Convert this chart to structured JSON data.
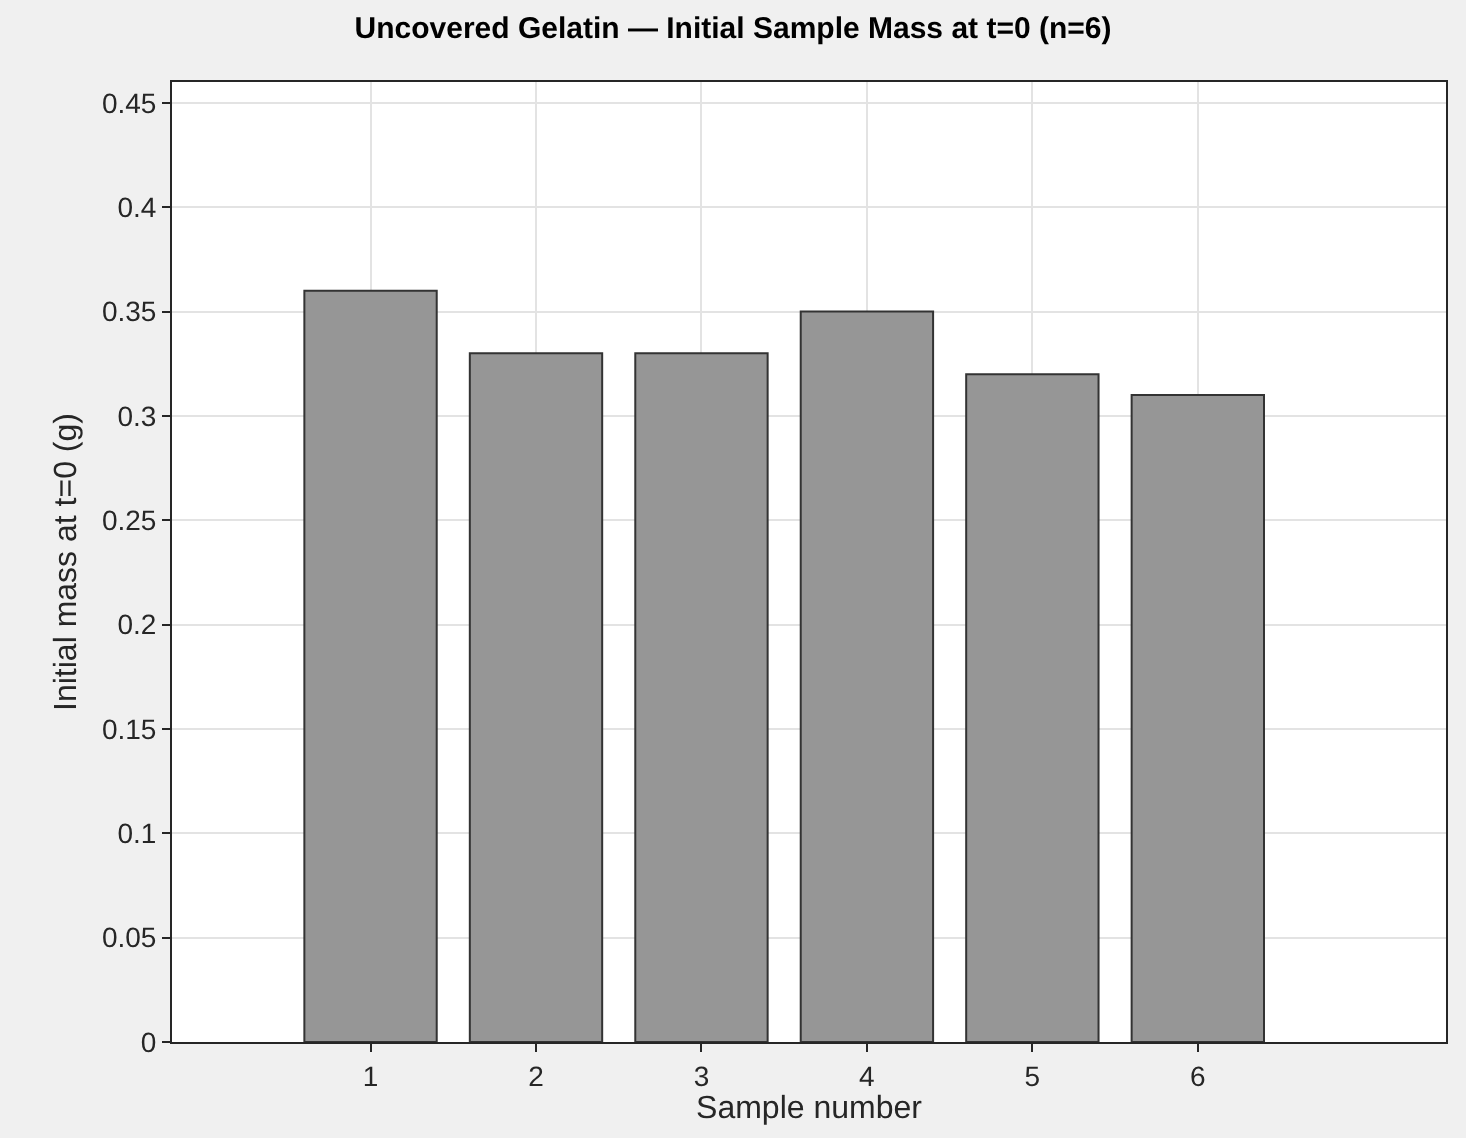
{
  "chart_data": {
    "type": "bar",
    "title": "Uncovered Gelatin — Initial Sample Mass at t=0 (n=6)",
    "xlabel": "Sample number",
    "ylabel": "Initial mass at t=0 (g)",
    "x": [
      1,
      2,
      3,
      4,
      5,
      6
    ],
    "values": [
      0.36,
      0.33,
      0.33,
      0.35,
      0.32,
      0.31
    ],
    "color": "#969696",
    "xlim": [
      -0.2,
      7.5
    ],
    "xticks": [
      1,
      2,
      3,
      4,
      5,
      6
    ],
    "ylim": [
      0,
      0.46
    ],
    "yticks": [
      0,
      0.05,
      0.1,
      0.15,
      0.2,
      0.25,
      0.3,
      0.35,
      0.4,
      0.45
    ],
    "grid": true,
    "legend": false
  }
}
